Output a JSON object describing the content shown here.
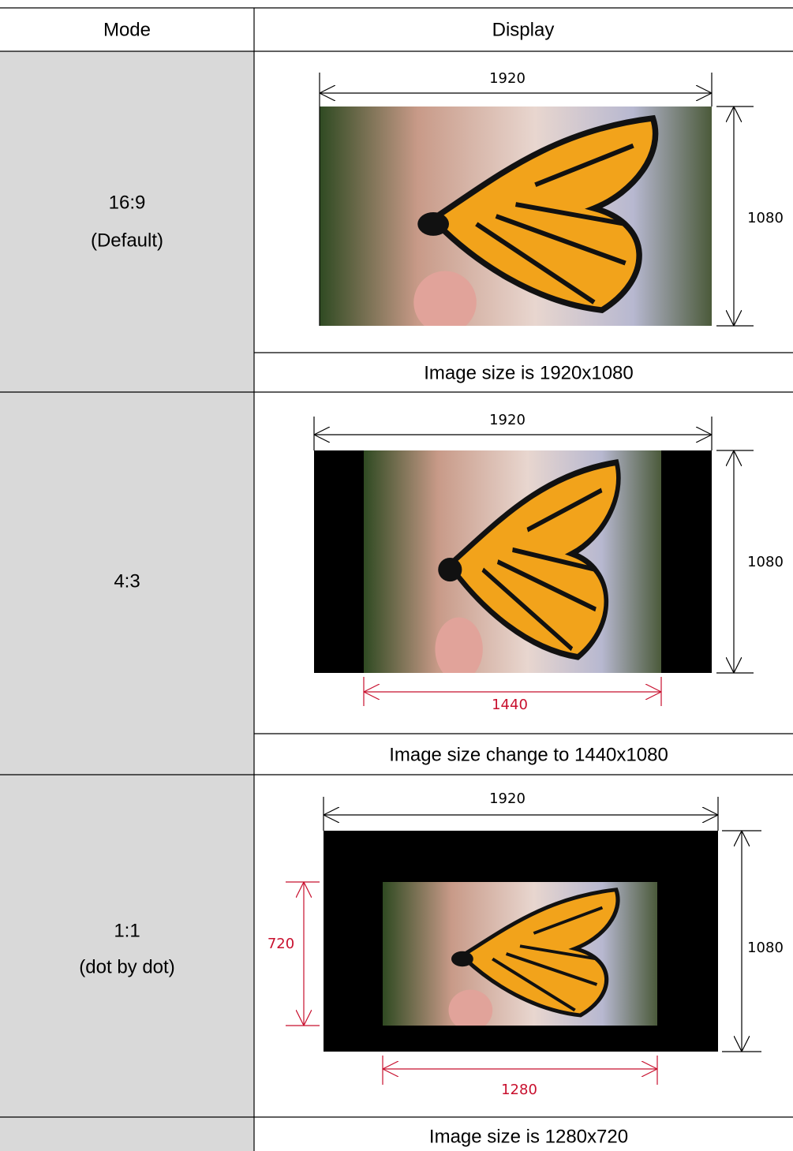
{
  "table": {
    "headers": [
      "Mode",
      "Display"
    ],
    "rows": [
      {
        "mode": [
          "16:9",
          "(Default)"
        ],
        "width_label": "1920",
        "height_label": "1080",
        "caption": "Image size is 1920x1080"
      },
      {
        "mode": [
          "4:3"
        ],
        "width_label": "1920",
        "height_label": "1080",
        "inner_width_label": "1440",
        "caption": "Image size change to 1440x1080"
      },
      {
        "mode": [
          "1:1",
          "(dot by dot)"
        ],
        "width_label": "1920",
        "height_label": "1080",
        "inner_height_label": "720",
        "inner_width_label": "1280",
        "caption": "Image size is 1280x720"
      }
    ]
  }
}
